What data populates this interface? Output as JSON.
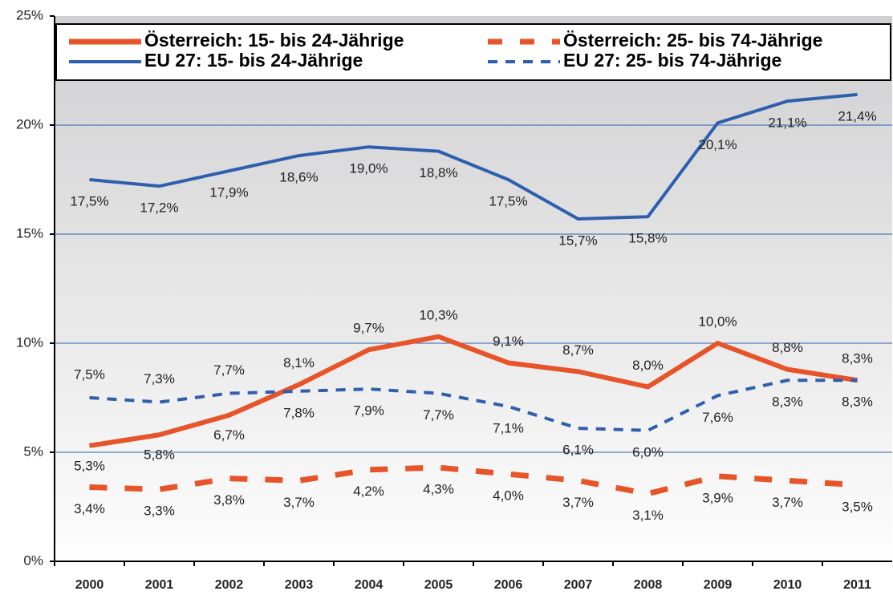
{
  "chart_data": {
    "type": "line",
    "categories": [
      "2000",
      "2001",
      "2002",
      "2003",
      "2004",
      "2005",
      "2006",
      "2007",
      "2008",
      "2009",
      "2010",
      "2011"
    ],
    "series": [
      {
        "name": "Österreich: 15- bis 24-Jährige",
        "color": "#e8542a",
        "line_style": "solid",
        "values": [
          5.3,
          5.8,
          6.7,
          8.1,
          9.7,
          10.3,
          9.1,
          8.7,
          8.0,
          10.0,
          8.8,
          8.3
        ],
        "value_labels": [
          "5,3%",
          "5,8%",
          "6,7%",
          "8,1%",
          "9,7%",
          "10,3%",
          "9,1%",
          "8,7%",
          "8,0%",
          "10,0%",
          "8,8%",
          "8,3%"
        ]
      },
      {
        "name": "Österreich: 25- bis 74-Jährige",
        "color": "#e8542a",
        "line_style": "dashed",
        "values": [
          3.4,
          3.3,
          3.8,
          3.7,
          4.2,
          4.3,
          4.0,
          3.7,
          3.1,
          3.9,
          3.7,
          3.5
        ],
        "value_labels": [
          "3,4%",
          "3,3%",
          "3,8%",
          "3,7%",
          "4,2%",
          "4,3%",
          "4,0%",
          "3,7%",
          "3,1%",
          "3,9%",
          "3,7%",
          "3,5%"
        ]
      },
      {
        "name": "EU 27: 15- bis 24-Jährige",
        "color": "#2e5fad",
        "line_style": "solid",
        "values": [
          17.5,
          17.2,
          17.9,
          18.6,
          19.0,
          18.8,
          17.5,
          15.7,
          15.8,
          20.1,
          21.1,
          21.4
        ],
        "value_labels": [
          "17,5%",
          "17,2%",
          "17,9%",
          "18,6%",
          "19,0%",
          "18,8%",
          "17,5%",
          "15,7%",
          "15,8%",
          "20,1%",
          "21,1%",
          "21,4%"
        ]
      },
      {
        "name": "EU 27: 25- bis 74-Jährige",
        "color": "#2e5fad",
        "line_style": "dashed",
        "values": [
          7.5,
          7.3,
          7.7,
          7.8,
          7.9,
          7.7,
          7.1,
          6.1,
          6.0,
          7.6,
          8.3,
          8.3
        ],
        "value_labels": [
          "7,5%",
          "7,3%",
          "7,7%",
          "7,8%",
          "7,9%",
          "7,7%",
          "7,1%",
          "6,1%",
          "6,0%",
          "7,6%",
          "8,3%",
          "8,3%"
        ]
      }
    ],
    "ylim": [
      0,
      25
    ],
    "yticks": [
      {
        "value": 0,
        "label": "0%"
      },
      {
        "value": 5,
        "label": "5%"
      },
      {
        "value": 10,
        "label": "10%"
      },
      {
        "value": 15,
        "label": "15%"
      },
      {
        "value": 20,
        "label": "20%"
      },
      {
        "value": 25,
        "label": "25%"
      }
    ],
    "grid": true,
    "legend": "top"
  }
}
